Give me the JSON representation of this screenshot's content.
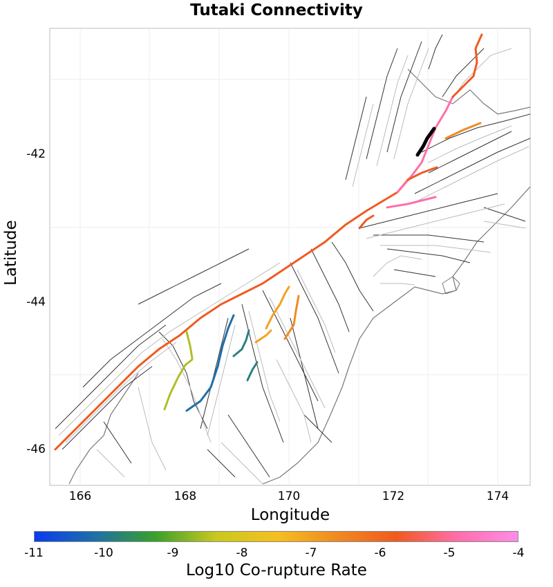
{
  "title": "Tutaki Connectivity",
  "xlabel": "Longitude",
  "ylabel": "Latitude",
  "x_ticks": [
    "166",
    "168",
    "170",
    "172",
    "174"
  ],
  "y_ticks": [
    "-42",
    "-44",
    "-46"
  ],
  "colorbar": {
    "label": "Log10 Co-rupture Rate",
    "ticks": [
      "-11",
      "-10",
      "-9",
      "-8",
      "-7",
      "-6",
      "-5",
      "-4"
    ],
    "colors": [
      "#0a3cf0",
      "#1e6fa8",
      "#3aa02a",
      "#c8c820",
      "#f5c020",
      "#f08a20",
      "#f05a20",
      "#ff6eaa",
      "#ff8ce8"
    ]
  },
  "colors": {
    "background_fault": "#333333",
    "fault_outline": "#bbbbbb",
    "coast": "#777777",
    "grid": "#e8e8e8"
  }
}
